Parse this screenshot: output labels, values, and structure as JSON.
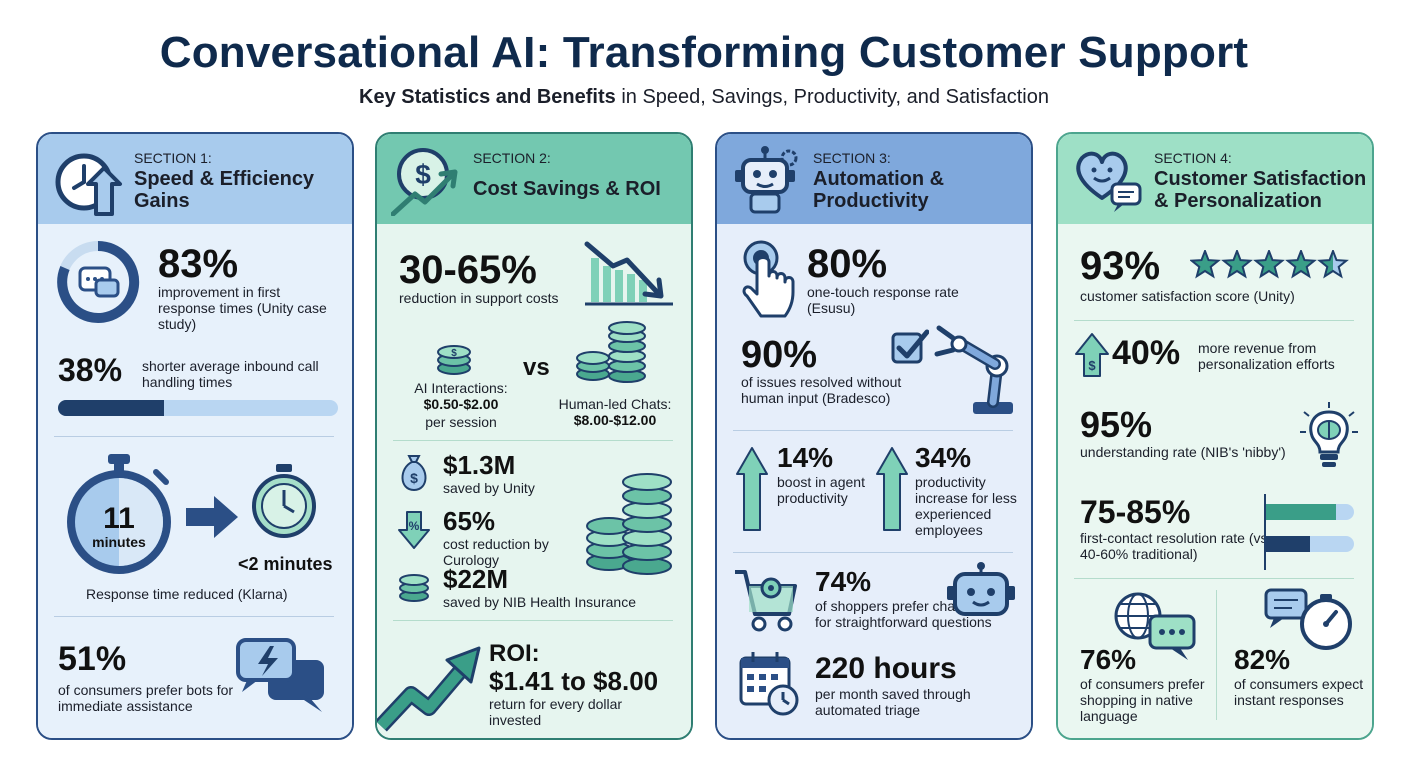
{
  "header": {
    "title": "Conversational AI: Transforming Customer Support",
    "subtitle_bold": "Key Statistics and Benefits",
    "subtitle_rest": " in Speed, Savings, Productivity, and Satisfaction"
  },
  "s1": {
    "kicker": "SECTION 1:",
    "title": "Speed & Efficiency Gains",
    "stat1": {
      "value": "83%",
      "desc": "improvement in first response times (Unity case study)"
    },
    "stat2": {
      "value": "38%",
      "desc": "shorter average inbound call handling times"
    },
    "timer": {
      "number": "11",
      "unit": "minutes",
      "after": "<2 minutes",
      "caption": "Response time reduced (Klarna)"
    },
    "stat3": {
      "value": "51%",
      "desc": "of consumers prefer bots for immediate assistance"
    }
  },
  "s2": {
    "kicker": "SECTION 2:",
    "title": "Cost Savings & ROI",
    "stat1": {
      "value": "30-65%",
      "desc": "reduction in support costs"
    },
    "compare": {
      "ai_label": "AI Interactions:",
      "ai_value": "$0.50-$2.00",
      "ai_unit": "per session",
      "vs": "vs",
      "human_label": "Human-led Chats:",
      "human_value": "$8.00-$12.00"
    },
    "unity": {
      "value": "$1.3M",
      "desc": "saved by Unity"
    },
    "curology": {
      "value": "65%",
      "desc": "cost reduction by Curology"
    },
    "nib": {
      "value": "$22M",
      "desc": "saved by NIB Health Insurance"
    },
    "roi": {
      "label": "ROI:",
      "value": "$1.41 to $8.00",
      "desc": "return for every dollar invested"
    }
  },
  "s3": {
    "kicker": "SECTION 3:",
    "title": "Automation & Productivity",
    "stat1": {
      "value": "80%",
      "desc": "one-touch response rate (Esusu)"
    },
    "stat2": {
      "value": "90%",
      "desc": "of issues resolved without human input (Bradesco)"
    },
    "stat3": {
      "value": "14%",
      "desc": "boost in agent productivity"
    },
    "stat4": {
      "value": "34%",
      "desc": "productivity increase for less experienced employees"
    },
    "stat5": {
      "value": "74%",
      "desc": "of shoppers prefer chatbots for straightforward questions"
    },
    "stat6": {
      "value": "220 hours",
      "desc": "per month saved through automated triage"
    }
  },
  "s4": {
    "kicker": "SECTION 4:",
    "title": "Customer Satisfaction & Personalization",
    "stat1": {
      "value": "93%",
      "desc": "customer satisfaction score (Unity)",
      "stars": 4.5
    },
    "stat2": {
      "value": "40%",
      "desc": "more revenue from personalization efforts"
    },
    "stat3": {
      "value": "95%",
      "desc": "understanding rate (NIB's 'nibby')"
    },
    "stat4": {
      "value": "75-85%",
      "desc": "first-contact resolution rate (vs 40-60% traditional)",
      "bar_ai": 0.8,
      "bar_traditional": 0.5
    },
    "stat5": {
      "value": "76%",
      "desc": "of consumers prefer shopping in native language"
    },
    "stat6": {
      "value": "82%",
      "desc": "of consumers expect instant responses"
    }
  },
  "colors": {
    "navy": "#1f3f6a",
    "teal": "#3a9e88",
    "blue": "#2b4f86"
  },
  "icons": [
    "clock-arrow-icon",
    "chat-bubble-icon",
    "stopwatch-icon",
    "arrow-right-icon",
    "lightning-chat-icon",
    "dollar-growth-icon",
    "decline-chart-icon",
    "coin-stack-icon",
    "money-bag-icon",
    "percent-down-icon",
    "growth-arrow-icon",
    "robot-icon",
    "touch-icon",
    "checkbox-icon",
    "robot-arm-icon",
    "up-arrow-icon",
    "cart-gear-icon",
    "calendar-clock-icon",
    "heart-chat-icon",
    "star-icon",
    "revenue-up-icon",
    "brain-bulb-icon",
    "globe-chat-icon",
    "chat-stopwatch-icon"
  ]
}
